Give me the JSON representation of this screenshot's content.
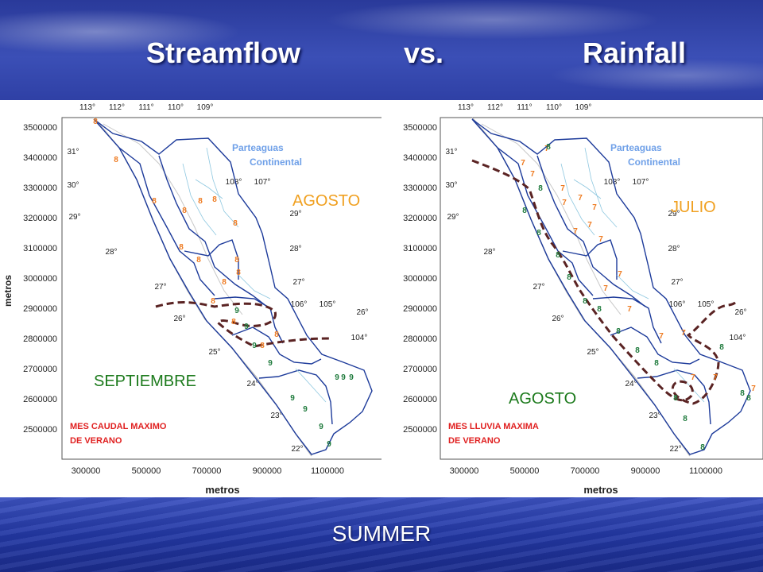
{
  "slide": {
    "title_left": "Streamflow",
    "title_mid": "vs.",
    "title_right": "Rainfall",
    "footer": "SUMMER"
  },
  "maps": [
    {
      "id": "streamflow",
      "y_ticks": [
        "3500000",
        "3400000",
        "3300000",
        "3200000",
        "3100000",
        "3000000",
        "2900000",
        "2800000",
        "2700000",
        "2600000",
        "2500000"
      ],
      "x_ticks": [
        "300000",
        "500000",
        "700000",
        "900000",
        "1100000"
      ],
      "y_axis_label": "metros",
      "x_axis_label": "metros",
      "lon_top": [
        "113°",
        "112°",
        "111°",
        "110°",
        "109°"
      ],
      "lon_inner": [
        "108°",
        "107°",
        "106°",
        "105°",
        "104°"
      ],
      "lat_labels": [
        "31°",
        "30°",
        "29°",
        "28°",
        "27°",
        "26°",
        "25°",
        "24°",
        "23°",
        "22°",
        "29°",
        "28°",
        "27°",
        "26°"
      ],
      "divide_label_1": "Parteaguas",
      "divide_label_2": "Continental",
      "region_north": "AGOSTO",
      "region_south": "SEPTIEMBRE",
      "caption_1": "MES CAUDAL MAXIMO",
      "caption_2": "DE VERANO",
      "month_north": "8",
      "month_south": "9"
    },
    {
      "id": "rainfall",
      "y_ticks": [
        "3500000",
        "3400000",
        "3300000",
        "3200000",
        "3100000",
        "3000000",
        "2900000",
        "2800000",
        "2700000",
        "2600000",
        "2500000"
      ],
      "x_ticks": [
        "300000",
        "500000",
        "700000",
        "900000",
        "1100000"
      ],
      "x_axis_label": "metros",
      "lon_top": [
        "113°",
        "112°",
        "111°",
        "110°",
        "109°"
      ],
      "lon_inner": [
        "108°",
        "107°",
        "106°",
        "105°",
        "104°"
      ],
      "lat_labels": [
        "31°",
        "30°",
        "29°",
        "28°",
        "27°",
        "26°",
        "25°",
        "24°",
        "23°",
        "22°",
        "29°",
        "28°",
        "27°",
        "26°"
      ],
      "divide_label_1": "Parteaguas",
      "divide_label_2": "Continental",
      "region_north": "JULIO",
      "region_south": "AGOSTO",
      "caption_1": "MES LLUVIA MAXIMA",
      "caption_2": "DE VERANO",
      "month_north": "7",
      "month_south": "8"
    }
  ],
  "colors": {
    "divide": "#6fa0e8",
    "north_region": "#f0a020",
    "south_region": "#1c7a1c",
    "caption": "#e02020",
    "boundary": "#5a2323",
    "basin": "#1c3a9a",
    "coast": "#b8b8b8",
    "digit_orange": "#ee7a20",
    "digit_green": "#1e7a3c"
  }
}
